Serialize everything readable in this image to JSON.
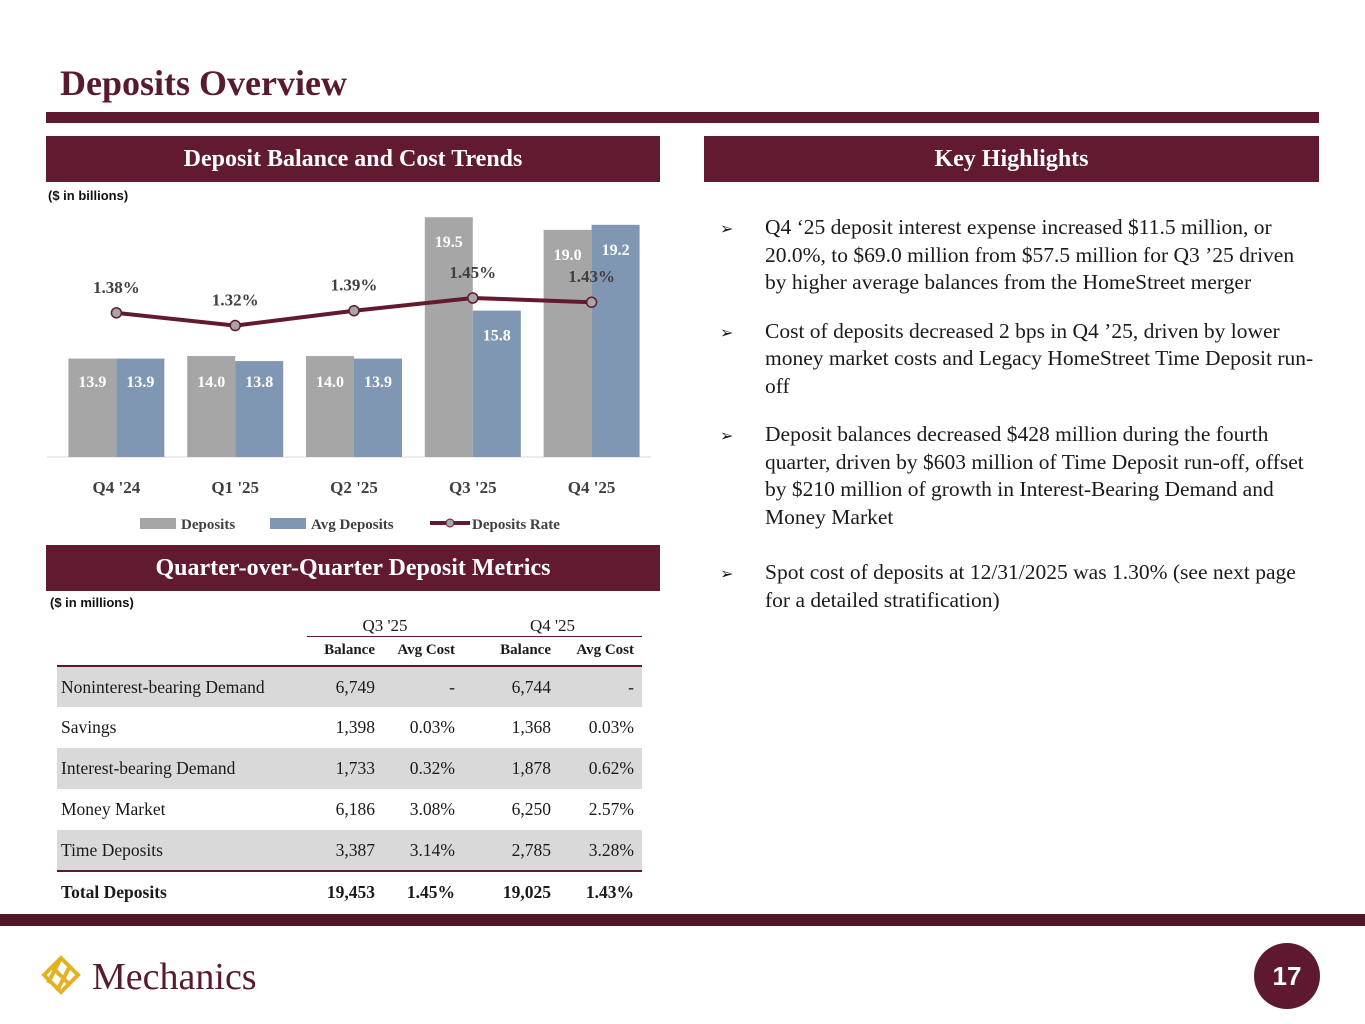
{
  "title": "Deposits Overview",
  "left_header": "Deposit Balance and Cost Trends",
  "right_header": "Key Highlights",
  "chart_unit": "($ in billions)",
  "chart_data": {
    "type": "bar",
    "categories": [
      "Q4 '24",
      "Q1 '25",
      "Q2 '25",
      "Q3 '25",
      "Q4 '25"
    ],
    "series": [
      {
        "name": "Deposits",
        "type": "bar",
        "color": "#a6a6a6",
        "values": [
          13.9,
          14.0,
          14.0,
          19.5,
          19.0
        ],
        "labels": [
          "13.9",
          "14.0",
          "14.0",
          "19.5",
          "19.0"
        ]
      },
      {
        "name": "Avg Deposits",
        "type": "bar",
        "color": "#7f97b3",
        "values": [
          13.9,
          13.8,
          13.9,
          15.8,
          19.2
        ],
        "labels": [
          "13.9",
          "13.8",
          "13.9",
          "15.8",
          "19.2"
        ]
      },
      {
        "name": "Deposits Rate",
        "type": "line",
        "color": "#641a2e",
        "axis": "secondary",
        "values": [
          1.38,
          1.32,
          1.39,
          1.45,
          1.43
        ],
        "labels": [
          "1.38%",
          "1.32%",
          "1.39%",
          "1.45%",
          "1.43%"
        ]
      }
    ],
    "ylim": [
      10,
      20.5
    ],
    "y2lim": [
      0.7,
      1.95
    ],
    "grid": false,
    "legend": "bottom"
  },
  "table_header": "Quarter-over-Quarter Deposit Metrics",
  "table_unit": "($ in millions)",
  "table": {
    "groups": [
      "Q3 '25",
      "Q4 '25"
    ],
    "subheaders": [
      "Balance",
      "Avg Cost",
      "Balance",
      "Avg Cost"
    ],
    "rows": [
      {
        "label": "Noninterest-bearing Demand",
        "cells": [
          "6,749",
          "-",
          "6,744",
          "-"
        ]
      },
      {
        "label": "Savings",
        "cells": [
          "1,398",
          "0.03%",
          "1,368",
          "0.03%"
        ]
      },
      {
        "label": "Interest-bearing Demand",
        "cells": [
          "1,733",
          "0.32%",
          "1,878",
          "0.62%"
        ]
      },
      {
        "label": "Money Market",
        "cells": [
          "6,186",
          "3.08%",
          "6,250",
          "2.57%"
        ]
      },
      {
        "label": "Time Deposits",
        "cells": [
          "3,387",
          "3.14%",
          "2,785",
          "3.28%"
        ]
      }
    ],
    "total": {
      "label": "Total Deposits",
      "cells": [
        "19,453",
        "1.45%",
        "19,025",
        "1.43%"
      ]
    }
  },
  "highlights": [
    "Q4 ‘25 deposit interest expense increased $11.5 million, or 20.0%, to $69.0 million from $57.5 million for Q3 ’25 driven by higher average balances from the HomeStreet merger",
    "Cost of deposits decreased 2 bps in Q4 ’25, driven by lower money market costs and Legacy HomeStreet Time Deposit run-off",
    "Deposit balances decreased $428 million during the fourth quarter, driven by $603 million of Time Deposit run-off, offset by $210 million of growth in Interest-Bearing Demand and Money Market",
    "Spot cost of deposits at 12/31/2025 was 1.30% (see next page for a detailed stratification)"
  ],
  "logo_text": "Mechanics",
  "page_number": "17"
}
